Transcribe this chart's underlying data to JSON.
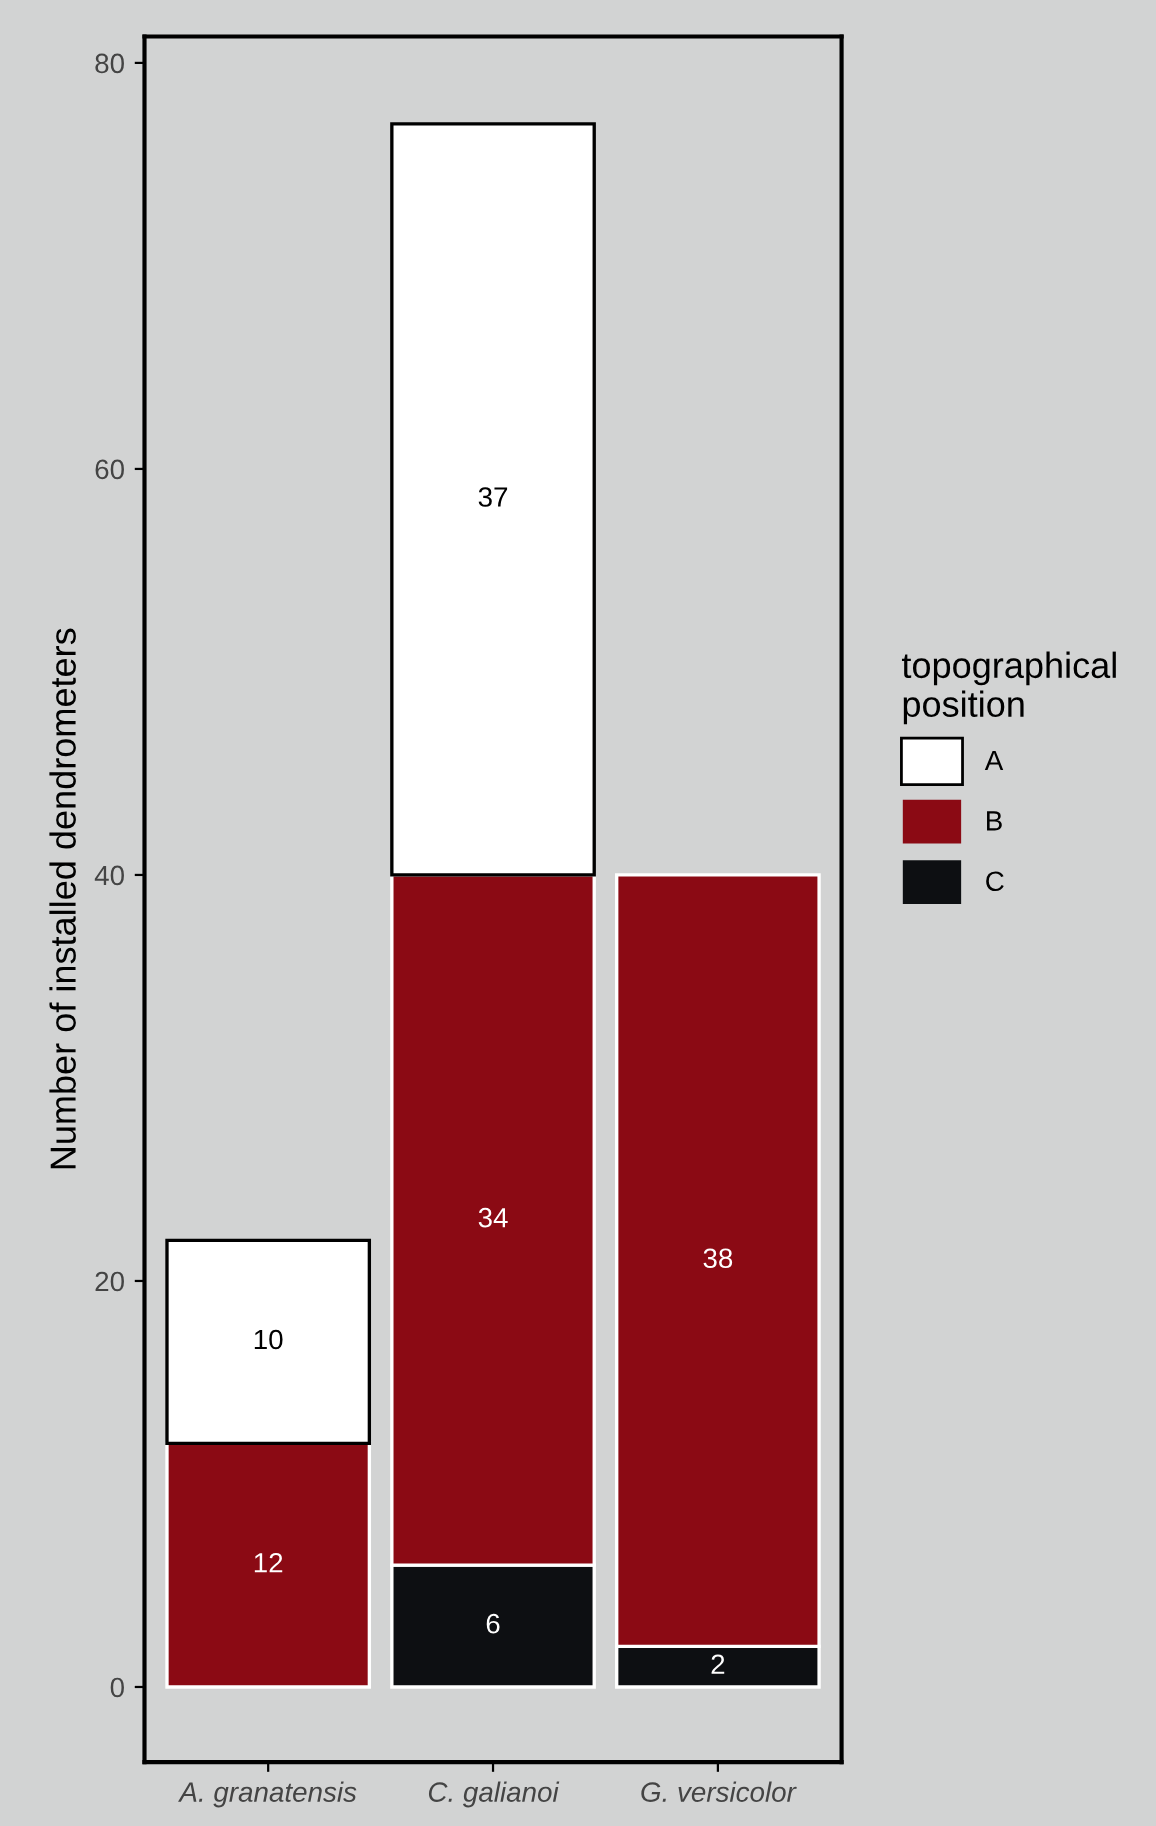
{
  "chart_data": {
    "type": "bar",
    "stacked": true,
    "ylabel": "Number of installed dendrometers",
    "legend_title": "topographical\nposition",
    "legend": "right",
    "grid": false,
    "data_labels": true,
    "categories": [
      "A. granatensis",
      "C. galianoi",
      "G. versicolor"
    ],
    "ylim": [
      -3.7,
      81.3
    ],
    "yticks": [
      0,
      20,
      40,
      60,
      80
    ],
    "series": [
      {
        "name": "C",
        "color": "#0d0f12",
        "values": [
          null,
          6,
          2
        ]
      },
      {
        "name": "B",
        "color": "#8b0a14",
        "values": [
          12,
          34,
          38
        ]
      },
      {
        "name": "A",
        "color": "#ffffff",
        "values": [
          10,
          37,
          null
        ]
      }
    ]
  }
}
